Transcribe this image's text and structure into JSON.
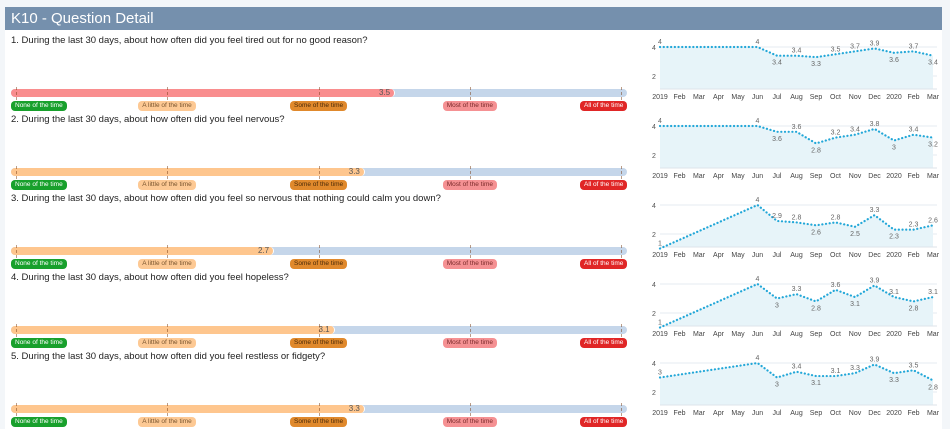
{
  "header": {
    "title": "K10 - Question Detail"
  },
  "scale": {
    "min": 1,
    "max": 5,
    "levels": [
      {
        "label": "None of the time",
        "bg": "#18a02c",
        "fg": "#ffffff"
      },
      {
        "label": "A little of the time",
        "bg": "#fdc994",
        "fg": "#7a5630"
      },
      {
        "label": "Some of the time",
        "bg": "#e0892c",
        "fg": "#4a2a08"
      },
      {
        "label": "Most of the time",
        "bg": "#f59193",
        "fg": "#7a2a2a"
      },
      {
        "label": "All of the time",
        "bg": "#e02626",
        "fg": "#ffffff"
      }
    ]
  },
  "chart_axis": {
    "x_labels": [
      "2019",
      "Feb",
      "Mar",
      "Apr",
      "May",
      "Jun",
      "Jul",
      "Aug",
      "Sep",
      "Oct",
      "Nov",
      "Dec",
      "2020",
      "Feb",
      "Mar"
    ],
    "y_ticks": [
      "4",
      "2"
    ],
    "ylim": [
      1.1,
      4.5
    ]
  },
  "questions": [
    {
      "text": "1. During the last 30 days, about how often did you feel tired out for no good reason?",
      "score": 3.5,
      "score_label": "3.5",
      "fill_color": "#f98d8e",
      "chart_data": {
        "type": "area",
        "month_index": [
          0,
          5,
          6,
          7,
          8,
          9,
          10,
          11,
          12,
          13,
          14
        ],
        "values": [
          4,
          4,
          3.4,
          3.4,
          3.3,
          3.5,
          3.7,
          3.9,
          3.6,
          3.7,
          3.4
        ],
        "labels": [
          "4",
          "4",
          "3.4",
          "3.4",
          "3.3",
          "3.5",
          "3.7",
          "3.9",
          "3.6",
          "3.7",
          "3.4"
        ]
      }
    },
    {
      "text": "2. During the last 30 days, about how often did you feel nervous?",
      "score": 3.3,
      "score_label": "3.3",
      "fill_color": "#fec68e",
      "chart_data": {
        "type": "area",
        "month_index": [
          0,
          5,
          6,
          7,
          8,
          9,
          10,
          11,
          12,
          13,
          14
        ],
        "values": [
          4,
          4,
          3.6,
          3.6,
          2.8,
          3.2,
          3.4,
          3.8,
          3,
          3.4,
          3.2
        ],
        "labels": [
          "4",
          "4",
          "3.6",
          "3.6",
          "2.8",
          "3.2",
          "3.4",
          "3.8",
          "3",
          "3.4",
          "3.2"
        ]
      }
    },
    {
      "text": "3. During the last 30 days, about how often did you feel so nervous that nothing could calm you down?",
      "score": 2.7,
      "score_label": "2.7",
      "fill_color": "#fec68e",
      "chart_data": {
        "type": "area",
        "month_index": [
          0,
          5,
          6,
          7,
          8,
          9,
          10,
          11,
          12,
          13,
          14
        ],
        "values": [
          1,
          4,
          2.9,
          2.8,
          2.6,
          2.8,
          2.5,
          3.3,
          2.3,
          2.3,
          2.6
        ],
        "labels": [
          "1",
          "4",
          "2.9",
          "2.8",
          "2.6",
          "2.8",
          "2.5",
          "3.3",
          "2.3",
          "2.3",
          "2.6"
        ]
      }
    },
    {
      "text": "4. During the last 30 days, about how often did you feel hopeless?",
      "score": 3.1,
      "score_label": "3.1",
      "fill_color": "#fec68e",
      "chart_data": {
        "type": "area",
        "month_index": [
          0,
          5,
          6,
          7,
          8,
          9,
          10,
          11,
          12,
          13,
          14
        ],
        "values": [
          1,
          4,
          3,
          3.3,
          2.8,
          3.6,
          3.1,
          3.9,
          3.1,
          2.8,
          3.1
        ],
        "labels": [
          "1",
          "4",
          "3",
          "3.3",
          "2.8",
          "3.6",
          "3.1",
          "3.9",
          "3.1",
          "2.8",
          "3.1"
        ]
      }
    },
    {
      "text": "5. During the last 30 days, about how often did you feel restless or fidgety?",
      "score": 3.3,
      "score_label": "3.3",
      "fill_color": "#fec68e",
      "chart_data": {
        "type": "area",
        "month_index": [
          0,
          5,
          6,
          7,
          8,
          9,
          10,
          11,
          12,
          13,
          14
        ],
        "values": [
          3,
          4,
          3,
          3.4,
          3.1,
          3.1,
          3.3,
          3.9,
          3.3,
          3.5,
          2.8
        ],
        "labels": [
          "3",
          "4",
          "3",
          "3.4",
          "3.1",
          "3.1",
          "3.3",
          "3.9",
          "3.3",
          "3.5",
          "2.8"
        ]
      }
    }
  ]
}
